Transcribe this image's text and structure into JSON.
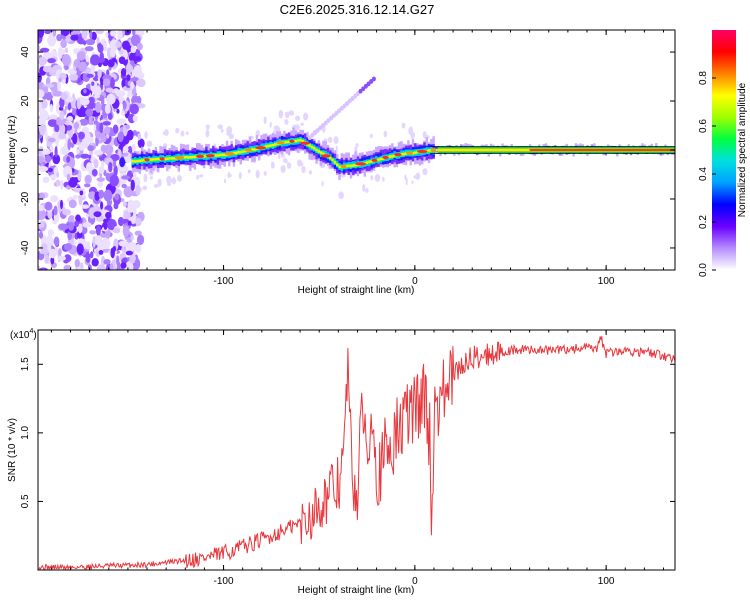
{
  "title": "C2E6.2025.316.12.14.G27",
  "chart_data": [
    {
      "type": "heatmap",
      "title": "C2E6.2025.316.12.14.G27",
      "xlabel": "Height of straight line (km)",
      "ylabel": "Frequency (Hz)",
      "xlim": [
        -197,
        136
      ],
      "ylim": [
        -49,
        49
      ],
      "xticks": [
        -100,
        0,
        100
      ],
      "xtick_labels": [
        "-100",
        "0",
        "100"
      ],
      "yticks": [
        -40,
        -20,
        0,
        20,
        40
      ],
      "ytick_labels": [
        "-40",
        "-20",
        "0",
        "20",
        "40"
      ],
      "colorbar": {
        "label": "Normalized spectral amplitude",
        "range": [
          0,
          1
        ],
        "ticks": [
          0,
          0.2,
          0.4,
          0.6,
          0.8
        ],
        "tick_labels": [
          "0.0",
          "0.2",
          "0.4",
          "0.6",
          "0.8"
        ],
        "colors": [
          "#ffffff",
          "#b58cff",
          "#6a00ff",
          "#0000ff",
          "#00a0ff",
          "#00e0e0",
          "#00ff40",
          "#a0ff00",
          "#ffff00",
          "#ff8000",
          "#ff0000",
          "#ff0066"
        ]
      },
      "ridge": {
        "description_points_x": [
          -152,
          -140,
          -120,
          -100,
          -80,
          -70,
          -60,
          -50,
          -45,
          -40,
          -30,
          -20,
          -10,
          0,
          10,
          20,
          40,
          60,
          80,
          100,
          120,
          135
        ],
        "description_points_y": [
          -5,
          -4,
          -3,
          -2,
          1,
          3,
          4,
          -1,
          -3,
          -7,
          -6,
          -4,
          -2,
          -1,
          0,
          0,
          0,
          0,
          0,
          0,
          0,
          0
        ]
      }
    },
    {
      "type": "line",
      "title": "",
      "xlabel": "Height of straight line (km)",
      "ylabel": "SNR (10 * v/v)",
      "multiplier_label": "(x10",
      "multiplier_exp": "4",
      "xlim": [
        -197,
        136
      ],
      "ylim": [
        0,
        1.75
      ],
      "xticks": [
        -100,
        0,
        100
      ],
      "xtick_labels": [
        "-100",
        "0",
        "100"
      ],
      "yticks": [
        0.5,
        1.0,
        1.5
      ],
      "ytick_labels": [
        "0.5",
        "1.0",
        "1.5"
      ],
      "color": "#e8383d",
      "series": [
        {
          "name": "SNR",
          "x": [
            -197,
            -180,
            -160,
            -140,
            -120,
            -110,
            -100,
            -90,
            -80,
            -70,
            -60,
            -55,
            -50,
            -45,
            -40,
            -37,
            -35,
            -33,
            -30,
            -27,
            -25,
            -22,
            -20,
            -17,
            -15,
            -12,
            -10,
            -7,
            -5,
            -2,
            0,
            3,
            5,
            8,
            9,
            10,
            12,
            15,
            20,
            25,
            30,
            40,
            50,
            60,
            70,
            80,
            90,
            95,
            97,
            100,
            110,
            120,
            130,
            136
          ],
          "values": [
            0.02,
            0.02,
            0.03,
            0.04,
            0.07,
            0.09,
            0.12,
            0.17,
            0.22,
            0.28,
            0.34,
            0.39,
            0.48,
            0.55,
            0.62,
            0.85,
            1.52,
            0.7,
            0.55,
            1.25,
            0.78,
            1.3,
            0.7,
            0.75,
            0.88,
            0.92,
            0.98,
            1.05,
            1.1,
            1.17,
            1.18,
            1.22,
            1.3,
            0.92,
            0.3,
            1.12,
            1.25,
            1.28,
            1.4,
            1.5,
            1.55,
            1.58,
            1.6,
            1.61,
            1.6,
            1.61,
            1.62,
            1.6,
            1.7,
            1.58,
            1.6,
            1.59,
            1.56,
            1.54
          ]
        }
      ]
    }
  ]
}
